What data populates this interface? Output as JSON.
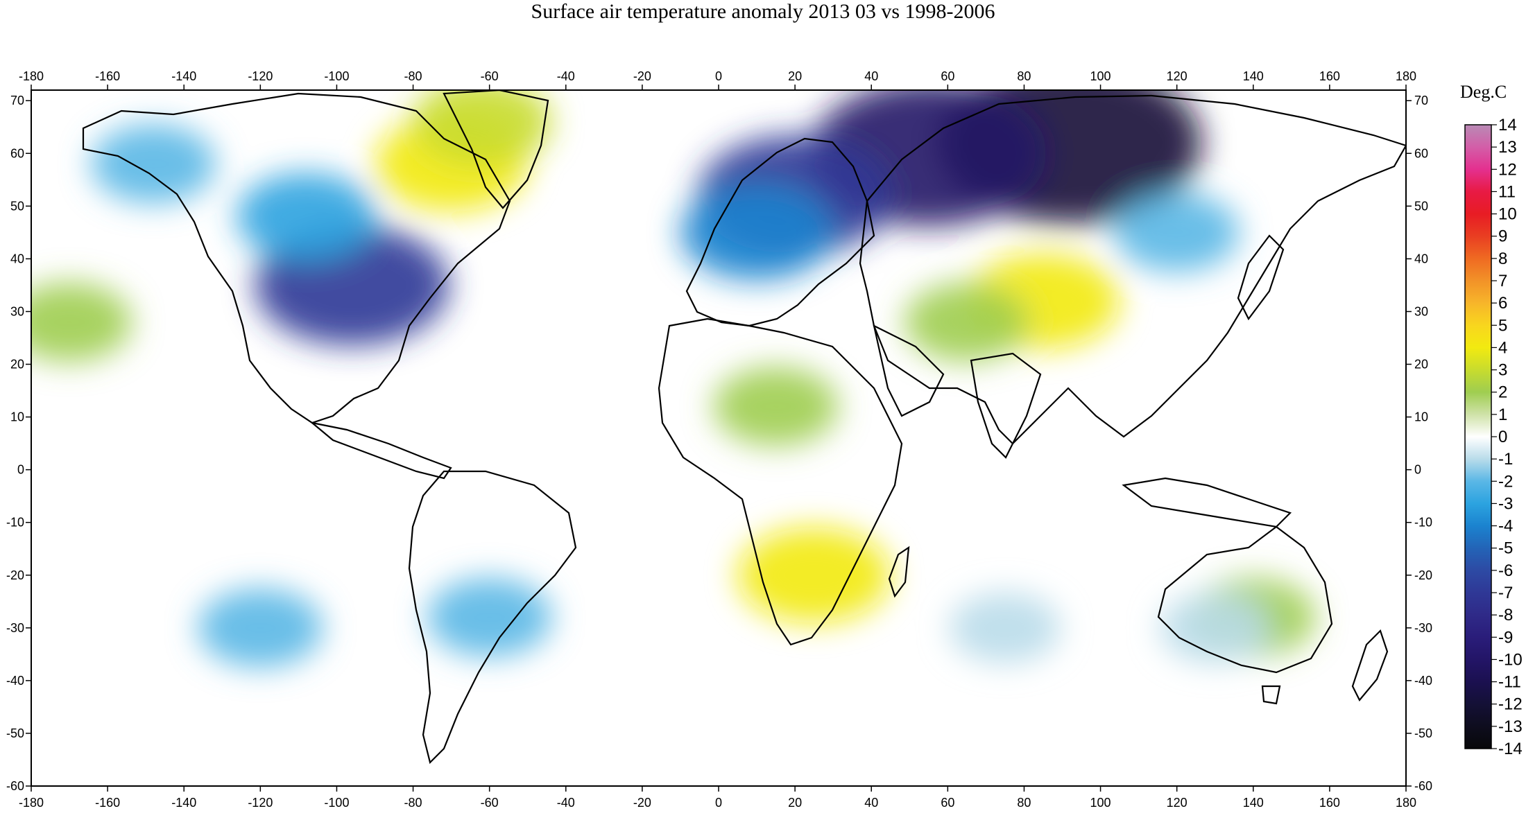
{
  "title": "Surface air temperature anomaly 2013 03 vs 1998-2006",
  "map": {
    "lon_range": [
      -180,
      180
    ],
    "lat_range": [
      -60,
      72
    ],
    "lon_ticks": [
      -180,
      -160,
      -140,
      -120,
      -100,
      -80,
      -60,
      -40,
      -20,
      0,
      20,
      40,
      60,
      80,
      100,
      120,
      140,
      160,
      180
    ],
    "lat_ticks": [
      70,
      60,
      50,
      40,
      30,
      20,
      10,
      0,
      -10,
      -20,
      -30,
      -40,
      -50,
      -60
    ],
    "axes_on": [
      "top",
      "bottom",
      "left",
      "right"
    ]
  },
  "colorbar": {
    "title": "Deg.C",
    "levels": [
      14,
      13,
      12,
      11,
      10,
      9,
      8,
      7,
      6,
      5,
      4,
      3,
      2,
      1,
      0,
      -1,
      -2,
      -3,
      -4,
      -5,
      -6,
      -7,
      -8,
      -9,
      -10,
      -11,
      -12,
      -13,
      -14
    ],
    "colors": [
      "#b98ab5",
      "#d35ea8",
      "#e4308f",
      "#e81a44",
      "#e81c24",
      "#e93e22",
      "#ef6a22",
      "#f29228",
      "#f7b52a",
      "#f8d61e",
      "#f2ea10",
      "#c8dc2e",
      "#9fcd50",
      "#cfe2a8",
      "#ffffff",
      "#b9dcea",
      "#5ab7e6",
      "#2ca3e0",
      "#1b83cf",
      "#2364b7",
      "#2d4aa4",
      "#2f3896",
      "#2f2a88",
      "#2a1d7a",
      "#231567",
      "#1b1050",
      "#141036",
      "#0e0d1e",
      "#08080a"
    ]
  },
  "anomaly_regions": [
    {
      "lon": 92,
      "lat": 62,
      "value": -12
    },
    {
      "lon": 55,
      "lat": 60,
      "value": -10
    },
    {
      "lon": 20,
      "lat": 52,
      "value": -7
    },
    {
      "lon": 10,
      "lat": 45,
      "value": -4
    },
    {
      "lon": -96,
      "lat": 35,
      "value": -7
    },
    {
      "lon": -108,
      "lat": 48,
      "value": -3
    },
    {
      "lon": -148,
      "lat": 58,
      "value": -2
    },
    {
      "lon": -70,
      "lat": 58,
      "value": 4
    },
    {
      "lon": -62,
      "lat": 66,
      "value": 3
    },
    {
      "lon": 85,
      "lat": 32,
      "value": 4
    },
    {
      "lon": 65,
      "lat": 28,
      "value": 2
    },
    {
      "lon": 15,
      "lat": 12,
      "value": 2
    },
    {
      "lon": 25,
      "lat": -20,
      "value": 4
    },
    {
      "lon": -170,
      "lat": 28,
      "value": 2
    },
    {
      "lon": 140,
      "lat": -28,
      "value": 2
    },
    {
      "lon": 120,
      "lat": 45,
      "value": -2
    },
    {
      "lon": -60,
      "lat": -28,
      "value": -2
    },
    {
      "lon": -120,
      "lat": -30,
      "value": -2
    },
    {
      "lon": 75,
      "lat": -30,
      "value": -1
    },
    {
      "lon": 130,
      "lat": -30,
      "value": -1
    }
  ]
}
